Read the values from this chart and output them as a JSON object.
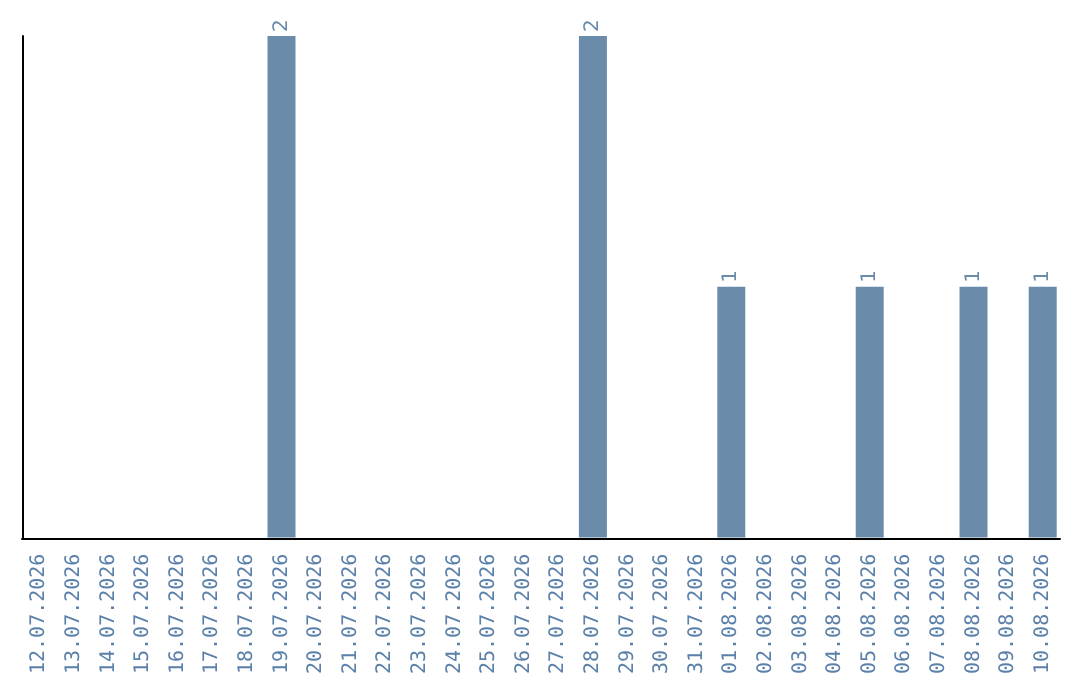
{
  "chart_data": {
    "type": "bar",
    "categories": [
      "12.07.2026",
      "13.07.2026",
      "14.07.2026",
      "15.07.2026",
      "16.07.2026",
      "17.07.2026",
      "18.07.2026",
      "19.07.2026",
      "20.07.2026",
      "21.07.2026",
      "22.07.2026",
      "23.07.2026",
      "24.07.2026",
      "25.07.2026",
      "26.07.2026",
      "27.07.2026",
      "28.07.2026",
      "29.07.2026",
      "30.07.2026",
      "31.07.2026",
      "01.08.2026",
      "02.08.2026",
      "03.08.2026",
      "04.08.2026",
      "05.08.2026",
      "06.08.2026",
      "07.08.2026",
      "08.08.2026",
      "09.08.2026",
      "10.08.2026"
    ],
    "values": [
      0,
      0,
      0,
      0,
      0,
      0,
      0,
      2,
      0,
      0,
      0,
      0,
      0,
      0,
      0,
      0,
      2,
      0,
      0,
      0,
      1,
      0,
      0,
      0,
      1,
      0,
      0,
      1,
      0,
      1
    ],
    "value_labels": [
      null,
      null,
      null,
      null,
      null,
      null,
      null,
      "2",
      null,
      null,
      null,
      null,
      null,
      null,
      null,
      null,
      "2",
      null,
      null,
      null,
      "1",
      null,
      null,
      null,
      "1",
      null,
      null,
      "1",
      null,
      "1"
    ],
    "color": "#6a8caa",
    "grid": false,
    "tick_labels": "x"
  }
}
